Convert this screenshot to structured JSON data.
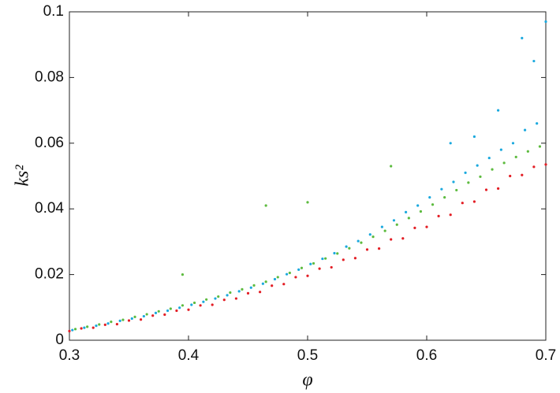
{
  "chart_data": {
    "type": "scatter",
    "x_label": "φ",
    "y_label": "ks²",
    "xlim": [
      0.3,
      0.7
    ],
    "xticks": [
      0.3,
      0.4,
      0.5,
      0.6,
      0.7
    ],
    "ylim": [
      0,
      0.1
    ],
    "yticks": [
      0,
      0.02,
      0.04,
      0.06,
      0.08,
      0.1
    ],
    "grid": false,
    "series": [
      {
        "color": "#1ba9de",
        "x": [
          0.3025,
          0.3125,
          0.3225,
          0.3325,
          0.3425,
          0.3525,
          0.3625,
          0.3725,
          0.3825,
          0.3925,
          0.4025,
          0.4125,
          0.4225,
          0.4325,
          0.4425,
          0.4525,
          0.4625,
          0.4725,
          0.4825,
          0.4925,
          0.5025,
          0.5125,
          0.5225,
          0.5325,
          0.5425,
          0.5525,
          0.5625,
          0.5725,
          0.5825,
          0.5925,
          0.6025,
          0.6125,
          0.6225,
          0.6325,
          0.6425,
          0.6525,
          0.6625,
          0.6725,
          0.6825,
          0.6925,
          0.64,
          0.66,
          0.68,
          0.69,
          0.7,
          0.62
        ],
        "values": [
          0.0031,
          0.0038,
          0.0044,
          0.0051,
          0.0059,
          0.0066,
          0.0073,
          0.0083,
          0.009,
          0.0099,
          0.0108,
          0.0117,
          0.0127,
          0.0137,
          0.0149,
          0.016,
          0.0172,
          0.0186,
          0.0201,
          0.0215,
          0.0232,
          0.0248,
          0.0265,
          0.0285,
          0.0302,
          0.0322,
          0.0345,
          0.0365,
          0.039,
          0.041,
          0.0435,
          0.046,
          0.0482,
          0.051,
          0.0532,
          0.0555,
          0.058,
          0.06,
          0.064,
          0.066,
          0.062,
          0.07,
          0.092,
          0.085,
          0.097,
          0.06
        ]
      },
      {
        "color": "#5dbb3f",
        "x": [
          0.305,
          0.315,
          0.325,
          0.335,
          0.345,
          0.355,
          0.365,
          0.375,
          0.385,
          0.395,
          0.405,
          0.415,
          0.425,
          0.435,
          0.445,
          0.455,
          0.465,
          0.475,
          0.485,
          0.495,
          0.505,
          0.515,
          0.525,
          0.535,
          0.545,
          0.555,
          0.565,
          0.575,
          0.585,
          0.595,
          0.605,
          0.615,
          0.625,
          0.635,
          0.645,
          0.655,
          0.665,
          0.675,
          0.685,
          0.695,
          0.395,
          0.465,
          0.5,
          0.57
        ],
        "values": [
          0.0034,
          0.0041,
          0.0048,
          0.0056,
          0.0062,
          0.0071,
          0.0079,
          0.0088,
          0.0096,
          0.0106,
          0.0114,
          0.0124,
          0.0133,
          0.0145,
          0.0155,
          0.0167,
          0.0178,
          0.0192,
          0.0205,
          0.022,
          0.0234,
          0.0249,
          0.0264,
          0.028,
          0.0297,
          0.0315,
          0.0333,
          0.0352,
          0.0372,
          0.0392,
          0.0413,
          0.0435,
          0.0457,
          0.048,
          0.0498,
          0.052,
          0.054,
          0.0558,
          0.0575,
          0.059,
          0.02,
          0.041,
          0.042,
          0.053
        ]
      },
      {
        "color": "#e31e25",
        "x": [
          0.3,
          0.31,
          0.32,
          0.33,
          0.34,
          0.35,
          0.36,
          0.37,
          0.38,
          0.39,
          0.4,
          0.41,
          0.42,
          0.43,
          0.44,
          0.45,
          0.46,
          0.47,
          0.48,
          0.49,
          0.5,
          0.51,
          0.52,
          0.53,
          0.54,
          0.55,
          0.56,
          0.57,
          0.58,
          0.59,
          0.6,
          0.61,
          0.62,
          0.63,
          0.64,
          0.65,
          0.66,
          0.67,
          0.68,
          0.69,
          0.7
        ],
        "values": [
          0.0028,
          0.0036,
          0.0038,
          0.0047,
          0.0049,
          0.006,
          0.0063,
          0.0075,
          0.0078,
          0.009,
          0.0093,
          0.0106,
          0.0108,
          0.0123,
          0.0127,
          0.0143,
          0.0147,
          0.0166,
          0.0171,
          0.0192,
          0.0196,
          0.0218,
          0.0222,
          0.0245,
          0.025,
          0.0276,
          0.0279,
          0.0307,
          0.031,
          0.0342,
          0.0345,
          0.0378,
          0.0382,
          0.0418,
          0.0422,
          0.0458,
          0.0462,
          0.05,
          0.0503,
          0.0528,
          0.0535
        ]
      }
    ]
  }
}
